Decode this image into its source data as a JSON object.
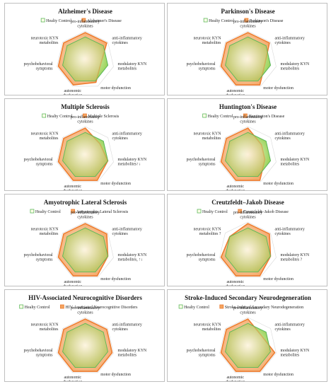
{
  "axes": [
    "pro-inflammatory cytokines",
    "anti-inflammatory cytokines",
    "modulatory KYN metabolites",
    "motor dysfunction",
    "autonomic dysfunction",
    "psychobehavioral symptoms",
    "neurotoxic KYN metabolites"
  ],
  "colors": {
    "control_line": "#5cb85c",
    "control_fill_center": "#fefee8",
    "control_fill_edge": "#92d050",
    "disease_line": "#ed7d31",
    "disease_fill_center": "#fde9d9",
    "disease_fill_edge": "#f4a460",
    "panel_border": "#bfbfbf",
    "web_line": "#d9d9d9"
  },
  "chart_data": [
    {
      "type": "radar",
      "title": "Alzheimer's Disease",
      "legend": [
        "Healty Control",
        "Alzheimer's Disease"
      ],
      "labels": [
        "pro-inflammatory\ncytokines",
        "anti-inflammatory\ncytokines",
        "modulatory KYN\nmetabolites",
        "motor dysfunction",
        "autonomic\ndysfunction",
        "psychobehavioral\nsymptoms",
        "neurotoxic KYN\nmetabolites"
      ],
      "series": [
        {
          "name": "Healty Control",
          "values": [
            0.8,
            0.8,
            0.8,
            0.8,
            0.8,
            0.8,
            0.8
          ]
        },
        {
          "name": "Alzheimer's Disease",
          "values": [
            0.95,
            0.95,
            0.55,
            0.85,
            0.95,
            0.95,
            0.95
          ]
        }
      ],
      "range": [
        0,
        1
      ]
    },
    {
      "type": "radar",
      "title": "Parkinson's Disease",
      "legend": [
        "Healty Control",
        "Parkinson's Disease"
      ],
      "labels": [
        "pro-inflammatory\ncytokines",
        "anti-inflammatory\ncytokines",
        "modulatory KYN\nmetabolites",
        "motor dysfunction",
        "autonomic\ndysfunction",
        "psychobehavioral\nsymptoms",
        "neurotoxic KYN\nmetabolites"
      ],
      "series": [
        {
          "name": "Healty Control",
          "values": [
            0.8,
            0.8,
            0.8,
            0.8,
            0.8,
            0.8,
            0.8
          ]
        },
        {
          "name": "Parkinson's Disease",
          "values": [
            0.95,
            0.95,
            0.6,
            0.95,
            0.95,
            0.95,
            0.95
          ]
        }
      ],
      "range": [
        0,
        1
      ]
    },
    {
      "type": "radar",
      "title": "Multiple Sclerosis",
      "legend": [
        "Healty Control",
        "Multiple Sclerosis"
      ],
      "labels": [
        "pro-inflammatory\ncytokines",
        "anti-inflammatory\ncytokines",
        "modulatory KYN\nmetabolites↑↓",
        "motor dysfunction",
        "autonomic\ndysfunction",
        "psychobehavioral\nsymptoms",
        "neurotoxic KYN\nmetabolites"
      ],
      "series": [
        {
          "name": "Healty Control",
          "values": [
            0.8,
            0.8,
            0.8,
            0.8,
            0.8,
            0.8,
            0.8
          ]
        },
        {
          "name": "Multiple Sclerosis",
          "values": [
            0.95,
            0.65,
            0.8,
            0.95,
            0.95,
            0.95,
            0.95
          ]
        }
      ],
      "range": [
        0,
        1
      ]
    },
    {
      "type": "radar",
      "title": "Huntington's Disease",
      "legend": [
        "Healty Control",
        "Huntington's Disease"
      ],
      "labels": [
        "pro-inflammatory\ncytokines",
        "anti-inflammatory\ncytokines",
        "modulatory KYN\nmetabolites",
        "motor dysfunction",
        "autonomic\ndysfunction",
        "psychobehavioral\nsymptoms",
        "neurotoxic KYN\nmetabolites"
      ],
      "series": [
        {
          "name": "Healty Control",
          "values": [
            0.8,
            0.8,
            0.8,
            0.8,
            0.8,
            0.8,
            0.8
          ]
        },
        {
          "name": "Huntington's Disease",
          "values": [
            0.95,
            0.6,
            0.6,
            0.95,
            0.95,
            0.95,
            0.95
          ]
        }
      ],
      "range": [
        0,
        1
      ]
    },
    {
      "type": "radar",
      "title": "Amyotrophic Lateral Sclerosis",
      "legend": [
        "Healty Control",
        "Amyotrophic Lateral Sclerosis"
      ],
      "labels": [
        "pro-inflammatory\ncytokines",
        "anti-inflammatory\ncytokines",
        "modulatory KYN\nmetabolites, ↑↓",
        "motor dysfunction",
        "autonomic\ndysfunction",
        "psychobehavioral\nsymptoms",
        "neurotoxic KYN\nmetabolites"
      ],
      "series": [
        {
          "name": "Healty Control",
          "values": [
            0.8,
            0.8,
            0.8,
            0.8,
            0.8,
            0.8,
            0.8
          ]
        },
        {
          "name": "Amyotrophic Lateral Sclerosis",
          "values": [
            0.95,
            0.95,
            0.8,
            0.95,
            0.95,
            0.95,
            0.95
          ]
        }
      ],
      "range": [
        0,
        1
      ]
    },
    {
      "type": "radar",
      "title": "Creutzfeldt–Jakob Disease",
      "legend": [
        "Healty Control",
        "Creutzfeldt–Jakob Disease"
      ],
      "labels": [
        "pro-inflammatory\ncytokines",
        "anti-inflammatory\ncytokines",
        "modulatory KYN\nmetabolites ?",
        "motor dysfunction",
        "autonomic\ndysfunction",
        "psychobehavioral\nsymptoms",
        "neurotoxic KYN\nmetabolites ?"
      ],
      "series": [
        {
          "name": "Healty Control",
          "values": [
            0.8,
            0.8,
            0.8,
            0.8,
            0.8,
            0.8,
            0.8
          ]
        },
        {
          "name": "Creutzfeldt–Jakob Disease",
          "values": [
            0.95,
            0.95,
            0.8,
            0.95,
            0.95,
            0.95,
            0.8
          ]
        }
      ],
      "range": [
        0,
        1
      ]
    },
    {
      "type": "radar",
      "title": "HIV-Associated Neurocognitive Disorders",
      "legend": [
        "Healty Control",
        "HIV-Associated Neurocognitive Disorders"
      ],
      "labels": [
        "pro-inflammatory\ncytokines",
        "anti-inflammatory\ncytokines",
        "modulatory KYN\nmetabolites",
        "motor dysfunction",
        "autonomic\ndysfunction",
        "psychobehavioral\nsymptoms",
        "neurotoxic KYN\nmetabolites"
      ],
      "series": [
        {
          "name": "Healty Control",
          "values": [
            0.8,
            0.8,
            0.8,
            0.8,
            0.8,
            0.8,
            0.8
          ]
        },
        {
          "name": "HIV-Associated Neurocognitive Disorders",
          "values": [
            0.95,
            0.95,
            0.95,
            0.95,
            0.95,
            0.95,
            0.95
          ]
        }
      ],
      "range": [
        0,
        1
      ]
    },
    {
      "type": "radar",
      "title": "Stroke-Induced Secondary Neurodegeneration",
      "legend": [
        "Healty Control",
        "Stroke-Induced Secondary Neurodegeneration"
      ],
      "labels": [
        "pro-inflammatory\ncytokines",
        "anti-inflammatory\ncytokines",
        "modulatory KYN\nmetabolites",
        "motor dysfunction",
        "autonomic\ndysfunction",
        "psychobehavioral\nsymptoms",
        "neurotoxic KYN\nmetabolites"
      ],
      "series": [
        {
          "name": "Healty Control",
          "values": [
            0.8,
            0.8,
            0.8,
            0.8,
            0.8,
            0.8,
            0.8
          ]
        },
        {
          "name": "Stroke-Induced Secondary Neurodegeneration",
          "values": [
            0.95,
            0.6,
            0.95,
            0.95,
            0.95,
            0.95,
            0.95
          ]
        }
      ],
      "range": [
        0,
        1
      ]
    }
  ]
}
